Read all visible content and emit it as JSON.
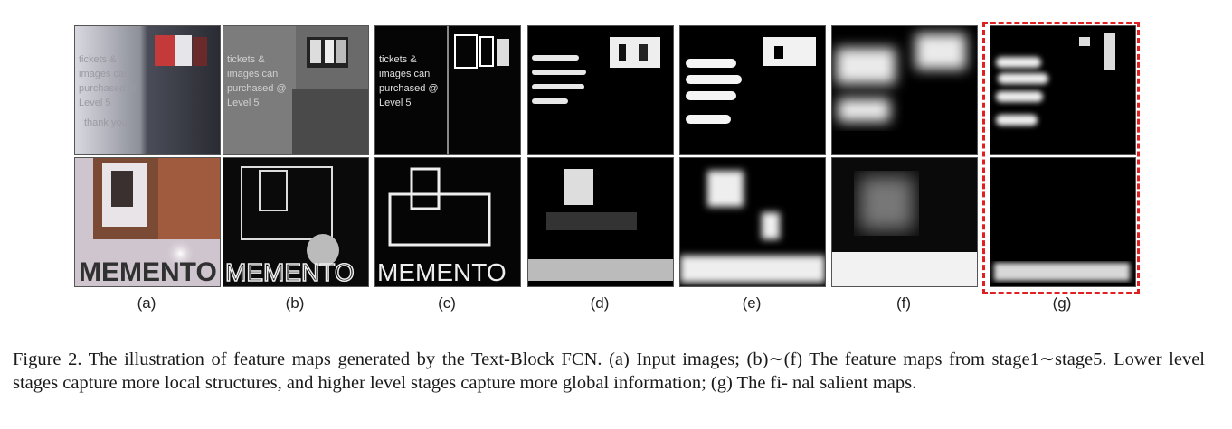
{
  "figure": {
    "labels": [
      "(a)",
      "(b)",
      "(c)",
      "(d)",
      "(e)",
      "(f)",
      "(g)"
    ],
    "columns": [
      "input-image",
      "stage1-feature-map",
      "stage2-feature-map",
      "stage3-feature-map",
      "stage4-feature-map",
      "stage5-feature-map",
      "salient-map"
    ],
    "highlight_color": "#e02020"
  },
  "caption": {
    "line1": "Figure 2. The illustration of feature maps generated by the Text-Block FCN. (a) Input images; (b)∼(f) The feature maps from",
    "line2": "stage1∼stage5. Lower level stages capture more local structures, and higher level stages capture more global information; (g) The fi-",
    "line3": "nal salient maps."
  }
}
